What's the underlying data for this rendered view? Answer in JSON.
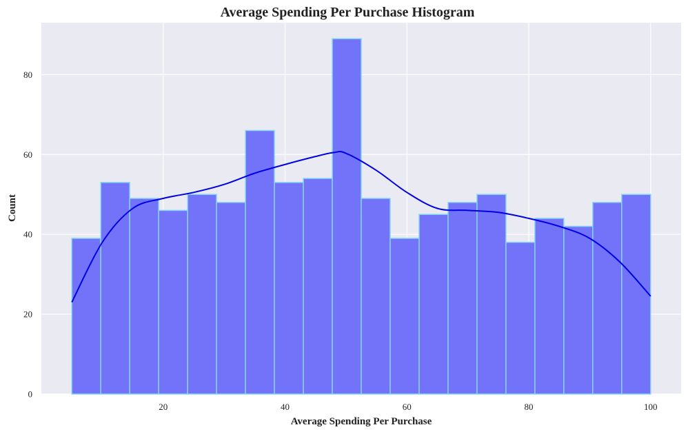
{
  "chart_data": {
    "type": "bar",
    "subtype": "histogram-with-kde",
    "title": "Average Spending Per Purchase Histogram",
    "xlabel": "Average Spending Per Purchase",
    "ylabel": "Count",
    "xlim": [
      0,
      105
    ],
    "ylim": [
      0,
      93
    ],
    "xticks": [
      20,
      40,
      60,
      80,
      100
    ],
    "yticks": [
      0,
      20,
      40,
      60,
      80
    ],
    "grid": true,
    "bin_start": 5,
    "bin_end": 100,
    "bin_counts": [
      39,
      53,
      49,
      46,
      50,
      48,
      66,
      53,
      54,
      89,
      49,
      39,
      45,
      48,
      50,
      38,
      44,
      42,
      48,
      50
    ],
    "kde": {
      "x": [
        5,
        10,
        15,
        20,
        25,
        30,
        35,
        40,
        45,
        48,
        50,
        55,
        60,
        65,
        70,
        75,
        80,
        85,
        90,
        95,
        100
      ],
      "y": [
        23,
        38,
        46.5,
        49,
        50.5,
        52.5,
        55.3,
        57.5,
        59.5,
        60.5,
        60.3,
        56,
        50.5,
        46.5,
        46,
        45.5,
        44,
        42,
        39,
        33,
        24.5
      ]
    },
    "colors": {
      "bar_fill": "#7373f9",
      "bar_edge": "#84d6f0",
      "kde_line": "#0000e6",
      "plot_background": "#eaeaf2",
      "grid": "#ffffff"
    }
  }
}
